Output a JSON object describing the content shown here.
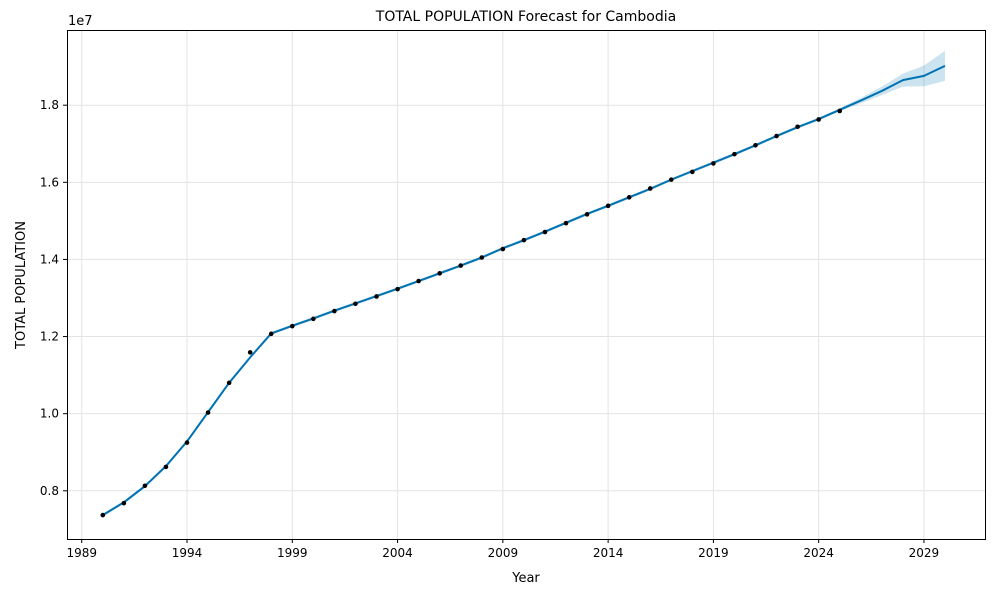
{
  "chart_data": {
    "type": "line",
    "title": "TOTAL POPULATION Forecast for Cambodia",
    "xlabel": "Year",
    "ylabel": "TOTAL POPULATION",
    "y_offset_label": "1e7",
    "x_ticks": [
      "1989",
      "1994",
      "1999",
      "2004",
      "2009",
      "2014",
      "2019",
      "2024",
      "2029"
    ],
    "y_ticks": [
      "0.8",
      "1.0",
      "1.2",
      "1.4",
      "1.6",
      "1.8"
    ],
    "xlim": [
      1988.3,
      2031.9
    ],
    "ylim": [
      6750000,
      19950000
    ],
    "grid": true,
    "colors": {
      "forecast_line": "#0072B2",
      "interval_fill": "#0072B2",
      "observed_points": "#000000"
    },
    "observed": {
      "x": [
        1990,
        1991,
        1992,
        1993,
        1994,
        1995,
        1996,
        1997,
        1998,
        1999,
        2000,
        2001,
        2002,
        2003,
        2004,
        2005,
        2006,
        2007,
        2008,
        2009,
        2010,
        2011,
        2012,
        2013,
        2014,
        2015,
        2016,
        2017,
        2018,
        2019,
        2020,
        2021,
        2022,
        2023,
        2024,
        2025
      ],
      "y": [
        7370000,
        7680000,
        8130000,
        8620000,
        9250000,
        10030000,
        10800000,
        11590000,
        12070000,
        12270000,
        12460000,
        12660000,
        12850000,
        13040000,
        13230000,
        13440000,
        13640000,
        13840000,
        14050000,
        14270000,
        14500000,
        14710000,
        14940000,
        15170000,
        15390000,
        15610000,
        15840000,
        16070000,
        16270000,
        16490000,
        16730000,
        16960000,
        17200000,
        17440000,
        17630000,
        17850000
      ]
    },
    "forecast": {
      "x": [
        1990,
        1991,
        1992,
        1993,
        1994,
        1995,
        1996,
        1997,
        1998,
        1999,
        2000,
        2001,
        2002,
        2003,
        2004,
        2005,
        2006,
        2007,
        2008,
        2009,
        2010,
        2011,
        2012,
        2013,
        2014,
        2015,
        2016,
        2017,
        2018,
        2019,
        2020,
        2021,
        2022,
        2023,
        2024,
        2025,
        2026,
        2027,
        2028,
        2029,
        2030
      ],
      "y": [
        7370000,
        7700000,
        8120000,
        8640000,
        9280000,
        10040000,
        10800000,
        11460000,
        12080000,
        12280000,
        12470000,
        12670000,
        12860000,
        13050000,
        13240000,
        13440000,
        13640000,
        13840000,
        14050000,
        14290000,
        14500000,
        14720000,
        14950000,
        15180000,
        15390000,
        15610000,
        15830000,
        16070000,
        16290000,
        16510000,
        16730000,
        16960000,
        17200000,
        17430000,
        17640000,
        17880000,
        18120000,
        18370000,
        18650000,
        18760000,
        19020000
      ],
      "lower": [
        7330000,
        7660000,
        8080000,
        8600000,
        9240000,
        10000000,
        10760000,
        11420000,
        12040000,
        12240000,
        12430000,
        12630000,
        12820000,
        13010000,
        13200000,
        13400000,
        13600000,
        13800000,
        14010000,
        14250000,
        14460000,
        14680000,
        14910000,
        15140000,
        15350000,
        15570000,
        15790000,
        16030000,
        16250000,
        16470000,
        16690000,
        16920000,
        17160000,
        17390000,
        17600000,
        17840000,
        18050000,
        18260000,
        18480000,
        18490000,
        18630000
      ],
      "upper": [
        7410000,
        7740000,
        8160000,
        8680000,
        9320000,
        10080000,
        10840000,
        11500000,
        12120000,
        12320000,
        12510000,
        12710000,
        12900000,
        13090000,
        13280000,
        13480000,
        13680000,
        13880000,
        14090000,
        14330000,
        14540000,
        14760000,
        14990000,
        15220000,
        15430000,
        15650000,
        15870000,
        16110000,
        16330000,
        16550000,
        16770000,
        17000000,
        17240000,
        17470000,
        17680000,
        17920000,
        18190000,
        18480000,
        18820000,
        19030000,
        19410000
      ]
    }
  }
}
